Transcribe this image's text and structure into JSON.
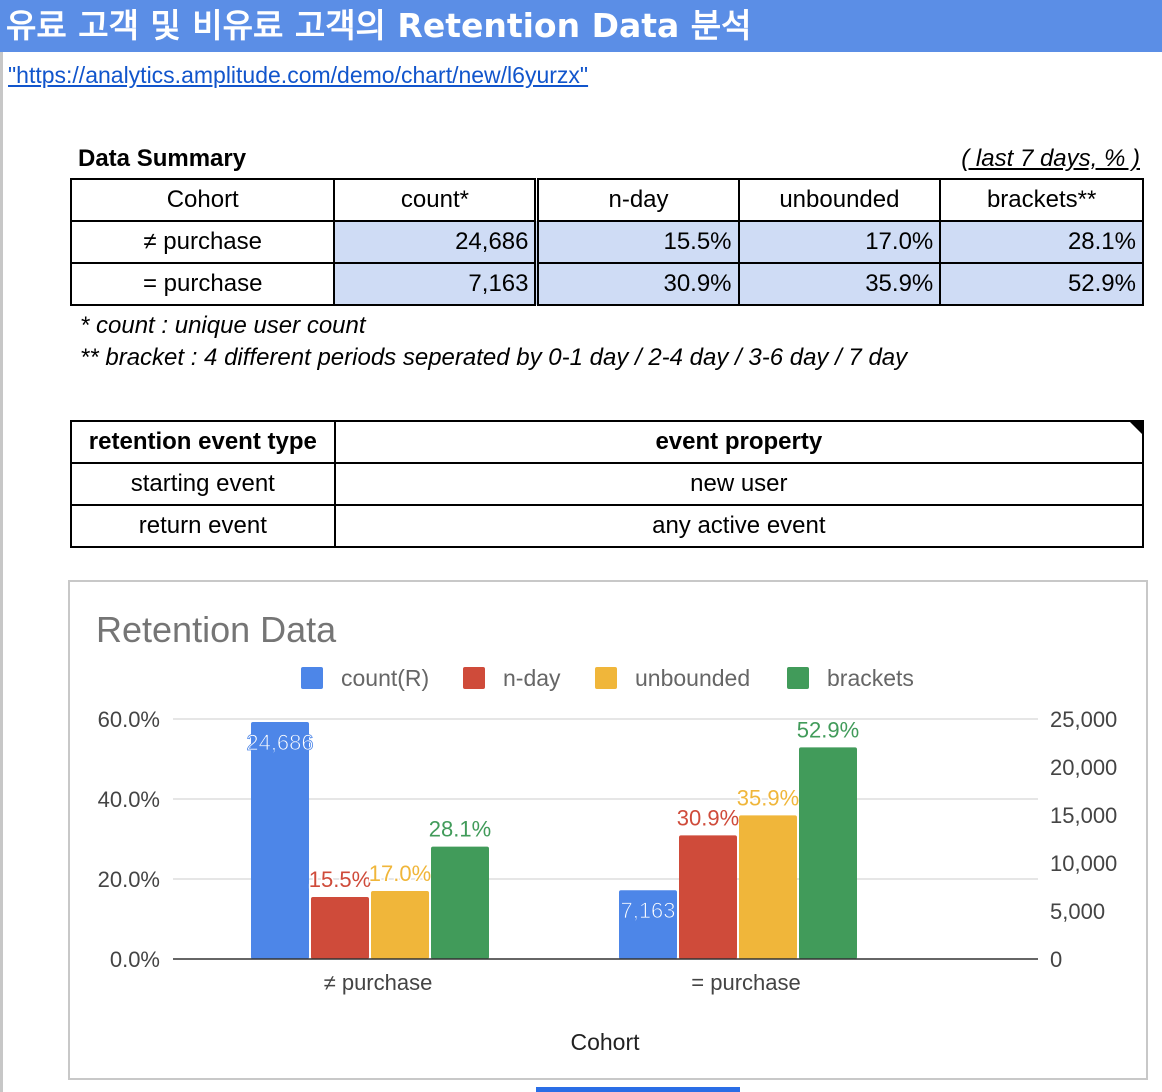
{
  "header": {
    "title": "유료 고객 및 비유료 고객의 Retention Data 분석",
    "url": "\"https://analytics.amplitude.com/demo/chart/new/l6yurzx\""
  },
  "summary": {
    "label": "Data Summary",
    "range": "( last 7 days, % )",
    "headers": [
      "Cohort",
      "count*",
      "n-day",
      "unbounded",
      "brackets**"
    ],
    "rows": [
      {
        "cohort": "≠ purchase",
        "count": "24,686",
        "nday": "15.5%",
        "unbounded": "17.0%",
        "brackets": "28.1%"
      },
      {
        "cohort": "= purchase",
        "count": "7,163",
        "nday": "30.9%",
        "unbounded": "35.9%",
        "brackets": "52.9%"
      }
    ],
    "notes": [
      "* count : unique user count",
      "** bracket : 4 different periods seperated by 0-1 day / 2-4 day / 3-6 day / 7 day"
    ]
  },
  "events": {
    "headers": [
      "retention event type",
      "event property"
    ],
    "rows": [
      {
        "type": "starting event",
        "property": "new user"
      },
      {
        "type": "return event",
        "property": "any active event"
      }
    ]
  },
  "chart_data": {
    "type": "bar",
    "title": "Retention Data",
    "xlabel": "Cohort",
    "ylabel": "",
    "categories": [
      "≠ purchase",
      "= purchase"
    ],
    "ylim": [
      0,
      60
    ],
    "y_ticks": [
      "0.0%",
      "20.0%",
      "40.0%",
      "60.0%"
    ],
    "y2lim": [
      0,
      25000
    ],
    "y2_ticks": [
      "0",
      "5,000",
      "10,000",
      "15,000",
      "20,000",
      "25,000"
    ],
    "grid": true,
    "legend": "top",
    "series": [
      {
        "name": "count(R)",
        "axis": "right",
        "color": "#4d86e8",
        "values": [
          24686,
          7163
        ],
        "labels": [
          "24,686",
          "7,163"
        ]
      },
      {
        "name": "n-day",
        "axis": "left",
        "color": "#cf4b3a",
        "values": [
          15.5,
          30.9
        ],
        "labels": [
          "15.5%",
          "30.9%"
        ]
      },
      {
        "name": "unbounded",
        "axis": "left",
        "color": "#f0b63a",
        "values": [
          17.0,
          35.9
        ],
        "labels": [
          "17.0%",
          "35.9%"
        ]
      },
      {
        "name": "brackets",
        "axis": "left",
        "color": "#419b5a",
        "values": [
          28.1,
          52.9
        ],
        "labels": [
          "28.1%",
          "52.9%"
        ]
      }
    ]
  }
}
